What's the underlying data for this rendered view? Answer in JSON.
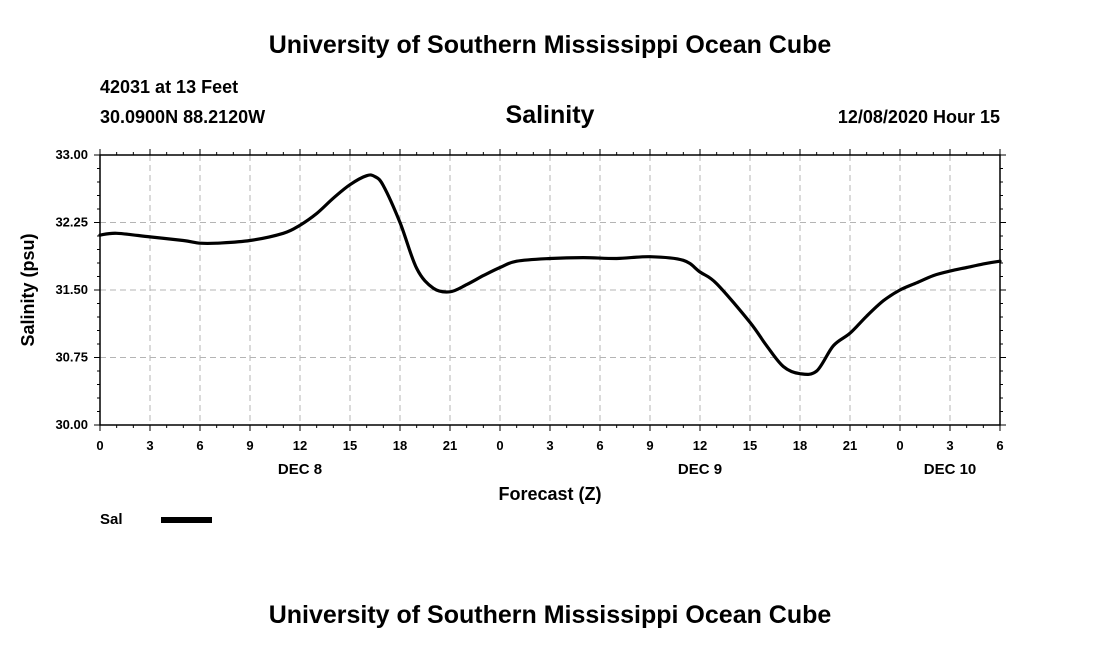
{
  "header": {
    "title": "University of Southern Mississippi Ocean Cube",
    "station": "42031 at 13 Feet",
    "coordinates": "30.0900N 88.2120W",
    "chart_title": "Salinity",
    "timestamp": "12/08/2020 Hour 15"
  },
  "footer": {
    "title": "University of Southern Mississippi Ocean Cube"
  },
  "legend": {
    "label": "Sal",
    "color": "#000000"
  },
  "chart_data": {
    "type": "line",
    "title": "Salinity",
    "xlabel": "Forecast (Z)",
    "ylabel": "Salinity (psu)",
    "ylim": [
      30.0,
      33.0
    ],
    "yticks": [
      "30.00",
      "30.75",
      "31.50",
      "32.25",
      "33.00"
    ],
    "x_range_hours": [
      0,
      54
    ],
    "xtick_labels": [
      "0",
      "3",
      "6",
      "9",
      "12",
      "15",
      "18",
      "21",
      "0",
      "3",
      "6",
      "9",
      "12",
      "15",
      "18",
      "21",
      "0",
      "3",
      "6"
    ],
    "day_labels": [
      {
        "text": "DEC 8",
        "hour": 12
      },
      {
        "text": "DEC 9",
        "hour": 36
      },
      {
        "text": "DEC 10",
        "hour": 51
      }
    ],
    "grid": true,
    "legend_position": "bottom-left",
    "series": [
      {
        "name": "Sal",
        "color": "#000000",
        "x": [
          0,
          1,
          3,
          5,
          6,
          7,
          9,
          11,
          12,
          13,
          14,
          15,
          16,
          16.5,
          17,
          18,
          19,
          20,
          21,
          22,
          23,
          24,
          25,
          27,
          29,
          31,
          33,
          35,
          36,
          37,
          39,
          40,
          41,
          42,
          43,
          44,
          45,
          46,
          47,
          48,
          49,
          50,
          51,
          52,
          53,
          54
        ],
        "y": [
          32.11,
          32.13,
          32.09,
          32.05,
          32.02,
          32.02,
          32.05,
          32.13,
          32.22,
          32.35,
          32.52,
          32.67,
          32.77,
          32.76,
          32.66,
          32.25,
          31.74,
          31.52,
          31.48,
          31.56,
          31.66,
          31.75,
          31.82,
          31.85,
          31.86,
          31.85,
          31.87,
          31.83,
          31.7,
          31.57,
          31.14,
          30.88,
          30.65,
          30.57,
          30.6,
          30.88,
          31.02,
          31.21,
          31.38,
          31.5,
          31.58,
          31.66,
          31.71,
          31.75,
          31.79,
          31.82
        ]
      }
    ]
  }
}
